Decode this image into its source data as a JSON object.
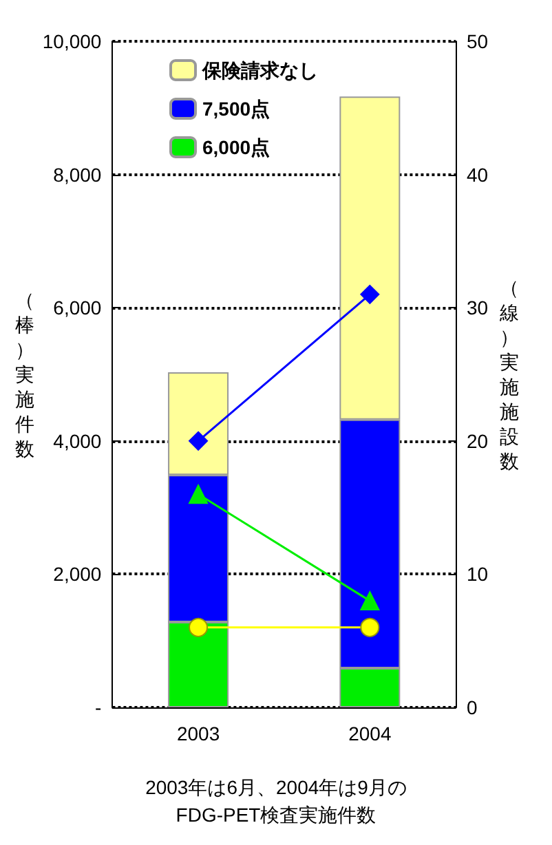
{
  "chart_data": {
    "type": "bar",
    "stacked": true,
    "categories": [
      "2003",
      "2004"
    ],
    "series": [
      {
        "name": "6,000点",
        "color": "#00ee00",
        "values": [
          1280,
          590
        ]
      },
      {
        "name": "7,500点",
        "color": "#0000ff",
        "values": [
          2210,
          3730
        ]
      },
      {
        "name": "保険請求なし",
        "color": "#ffff99",
        "values": [
          1540,
          4850
        ]
      },
      {
        "type": "line",
        "axis": "y2",
        "color": "#0000ff",
        "marker": "diamond",
        "values": [
          20,
          31
        ]
      },
      {
        "type": "line",
        "axis": "y2",
        "color": "#00ee00",
        "marker": "triangle",
        "values": [
          16,
          8
        ]
      },
      {
        "type": "line",
        "axis": "y2",
        "color": "#ffff00",
        "marker": "circle",
        "values": [
          6,
          6
        ]
      }
    ],
    "ylim": [
      0,
      10000
    ],
    "yticks": [
      {
        "value": 0,
        "label": "-"
      },
      {
        "value": 2000,
        "label": "2,000"
      },
      {
        "value": 4000,
        "label": "4,000"
      },
      {
        "value": 6000,
        "label": "6,000"
      },
      {
        "value": 8000,
        "label": "8,000"
      },
      {
        "value": 10000,
        "label": "10,000"
      }
    ],
    "y2lim": [
      0,
      50
    ],
    "y2ticks": [
      0,
      10,
      20,
      30,
      40,
      50
    ],
    "ylabel": "（棒）実施件数",
    "y2label": "（線）実施施設数",
    "annotations": [
      "2003年は6月、2004年は9月の\nFDG-PET検査実施件数"
    ],
    "grid": "y",
    "legend": "top left"
  }
}
